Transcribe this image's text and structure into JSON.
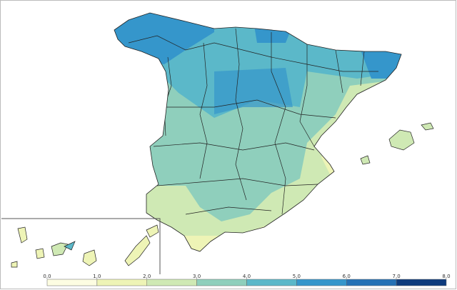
{
  "legend": {
    "ticks": [
      "0,0",
      "1,0",
      "2,0",
      "3,0",
      "4,0",
      "5,0",
      "6,0",
      "7,0",
      "8,0"
    ],
    "colors": [
      "#fdfde2",
      "#eef4b6",
      "#cfe9b4",
      "#8fcfbc",
      "#5bb8c9",
      "#3596cb",
      "#2571b5",
      "#0e3b7d"
    ]
  }
}
